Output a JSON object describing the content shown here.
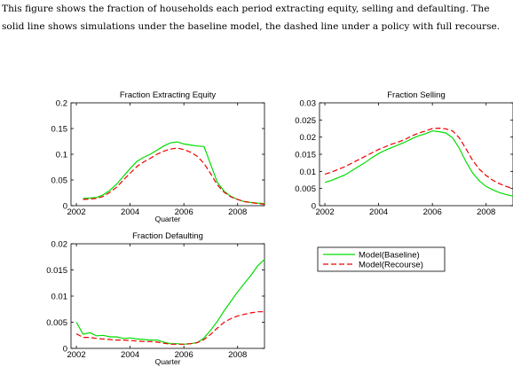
{
  "caption": "This figure shows the fraction of households each period extracting equity, selling and defaulting. The solid line shows simulations under the baseline model, the dashed line under a policy with full recourse.",
  "legend": {
    "placement": "center-right",
    "entries": [
      {
        "label": "Model(Baseline)",
        "color": "#00dd00",
        "style": "solid"
      },
      {
        "label": "Model(Recourse)",
        "color": "#ee0000",
        "style": "dashed"
      }
    ]
  },
  "chart_data": [
    {
      "type": "line",
      "title": "Fraction Extracting Equity",
      "xlabel": "Quarter",
      "ylabel": "",
      "xlim": [
        2001.8,
        2009.0
      ],
      "ylim": [
        0,
        0.2
      ],
      "xticks": [
        2002,
        2004,
        2006,
        2008
      ],
      "yticks": [
        0,
        0.05,
        0.1,
        0.15,
        0.2
      ],
      "ytick_labels": [
        "0",
        "0.05",
        "0.1",
        "0.15",
        "0.2"
      ],
      "grid": false,
      "series": [
        {
          "name": "Model(Baseline)",
          "color": "#00dd00",
          "style": "solid",
          "x": [
            2002.25,
            2002.5,
            2002.75,
            2003.0,
            2003.25,
            2003.5,
            2003.75,
            2004.0,
            2004.25,
            2004.5,
            2004.75,
            2005.0,
            2005.25,
            2005.5,
            2005.75,
            2006.0,
            2006.25,
            2006.5,
            2006.75,
            2007.0,
            2007.25,
            2007.5,
            2007.75,
            2008.0,
            2008.25,
            2008.5,
            2008.75,
            2009.0
          ],
          "y": [
            0.014,
            0.015,
            0.016,
            0.021,
            0.03,
            0.042,
            0.057,
            0.072,
            0.086,
            0.094,
            0.1,
            0.108,
            0.116,
            0.122,
            0.124,
            0.12,
            0.118,
            0.116,
            0.115,
            0.08,
            0.045,
            0.028,
            0.018,
            0.012,
            0.008,
            0.006,
            0.005,
            0.004
          ]
        },
        {
          "name": "Model(Recourse)",
          "color": "#ee0000",
          "style": "dashed",
          "x": [
            2002.25,
            2002.5,
            2002.75,
            2003.0,
            2003.25,
            2003.5,
            2003.75,
            2004.0,
            2004.25,
            2004.5,
            2004.75,
            2005.0,
            2005.25,
            2005.5,
            2005.75,
            2006.0,
            2006.25,
            2006.5,
            2006.75,
            2007.0,
            2007.25,
            2007.5,
            2007.75,
            2008.0,
            2008.25,
            2008.5,
            2008.75,
            2009.0
          ],
          "y": [
            0.012,
            0.013,
            0.014,
            0.018,
            0.026,
            0.036,
            0.05,
            0.063,
            0.076,
            0.085,
            0.092,
            0.1,
            0.106,
            0.11,
            0.112,
            0.109,
            0.104,
            0.096,
            0.082,
            0.062,
            0.04,
            0.026,
            0.017,
            0.012,
            0.008,
            0.006,
            0.004,
            0.003
          ]
        }
      ]
    },
    {
      "type": "line",
      "title": "Fraction Selling",
      "xlabel": "",
      "ylabel": "",
      "xlim": [
        2001.8,
        2009.0
      ],
      "ylim": [
        0,
        0.03
      ],
      "xticks": [
        2002,
        2004,
        2006,
        2008
      ],
      "yticks": [
        0,
        0.005,
        0.01,
        0.015,
        0.02,
        0.025,
        0.03
      ],
      "ytick_labels": [
        "0",
        "0.005",
        "0.01",
        "0.015",
        "0.02",
        "0.025",
        "0.03"
      ],
      "grid": false,
      "series": [
        {
          "name": "Model(Baseline)",
          "color": "#00dd00",
          "style": "solid",
          "x": [
            2002.0,
            2002.25,
            2002.5,
            2002.75,
            2003.0,
            2003.25,
            2003.5,
            2003.75,
            2004.0,
            2004.25,
            2004.5,
            2004.75,
            2005.0,
            2005.25,
            2005.5,
            2005.75,
            2006.0,
            2006.25,
            2006.5,
            2006.75,
            2007.0,
            2007.25,
            2007.5,
            2007.75,
            2008.0,
            2008.25,
            2008.5,
            2008.75,
            2009.0
          ],
          "y": [
            0.0068,
            0.0074,
            0.0082,
            0.009,
            0.0102,
            0.0114,
            0.0126,
            0.014,
            0.0152,
            0.0162,
            0.017,
            0.0178,
            0.0186,
            0.0196,
            0.0204,
            0.021,
            0.0218,
            0.0216,
            0.0212,
            0.0198,
            0.0168,
            0.0128,
            0.0095,
            0.0072,
            0.0056,
            0.0046,
            0.0038,
            0.0032,
            0.0028
          ]
        },
        {
          "name": "Model(Recourse)",
          "color": "#ee0000",
          "style": "dashed",
          "x": [
            2002.0,
            2002.25,
            2002.5,
            2002.75,
            2003.0,
            2003.25,
            2003.5,
            2003.75,
            2004.0,
            2004.25,
            2004.5,
            2004.75,
            2005.0,
            2005.25,
            2005.5,
            2005.75,
            2006.0,
            2006.25,
            2006.5,
            2006.75,
            2007.0,
            2007.25,
            2007.5,
            2007.75,
            2008.0,
            2008.25,
            2008.5,
            2008.75,
            2009.0
          ],
          "y": [
            0.0092,
            0.0098,
            0.0106,
            0.0114,
            0.0124,
            0.0134,
            0.0144,
            0.0154,
            0.0164,
            0.0172,
            0.018,
            0.0186,
            0.0194,
            0.0204,
            0.0212,
            0.0218,
            0.0225,
            0.0226,
            0.0224,
            0.0218,
            0.0198,
            0.0166,
            0.0132,
            0.0106,
            0.0088,
            0.0074,
            0.0064,
            0.0056,
            0.005
          ]
        }
      ]
    },
    {
      "type": "line",
      "title": "Fraction Defaulting",
      "xlabel": "Quarter",
      "ylabel": "",
      "xlim": [
        2001.8,
        2009.0
      ],
      "ylim": [
        0,
        0.02
      ],
      "xticks": [
        2002,
        2004,
        2006,
        2008
      ],
      "yticks": [
        0,
        0.005,
        0.01,
        0.015,
        0.02
      ],
      "ytick_labels": [
        "0",
        "0.005",
        "0.01",
        "0.015",
        "0.02"
      ],
      "grid": false,
      "series": [
        {
          "name": "Model(Baseline)",
          "color": "#00dd00",
          "style": "solid",
          "x": [
            2002.0,
            2002.25,
            2002.5,
            2002.75,
            2003.0,
            2003.25,
            2003.5,
            2003.75,
            2004.0,
            2004.25,
            2004.5,
            2004.75,
            2005.0,
            2005.25,
            2005.5,
            2005.75,
            2006.0,
            2006.25,
            2006.5,
            2006.75,
            2007.0,
            2007.25,
            2007.5,
            2007.75,
            2008.0,
            2008.25,
            2008.5,
            2008.75,
            2009.0
          ],
          "y": [
            0.005,
            0.0027,
            0.003,
            0.0024,
            0.0025,
            0.0022,
            0.0022,
            0.0019,
            0.002,
            0.0018,
            0.0017,
            0.0016,
            0.0016,
            0.0012,
            0.0009,
            0.0009,
            0.0008,
            0.0009,
            0.0011,
            0.002,
            0.0035,
            0.0052,
            0.0072,
            0.009,
            0.0108,
            0.0124,
            0.014,
            0.0158,
            0.017
          ]
        },
        {
          "name": "Model(Recourse)",
          "color": "#ee0000",
          "style": "dashed",
          "x": [
            2002.0,
            2002.25,
            2002.5,
            2002.75,
            2003.0,
            2003.25,
            2003.5,
            2003.75,
            2004.0,
            2004.25,
            2004.5,
            2004.75,
            2005.0,
            2005.25,
            2005.5,
            2005.75,
            2006.0,
            2006.25,
            2006.5,
            2006.75,
            2007.0,
            2007.25,
            2007.5,
            2007.75,
            2008.0,
            2008.25,
            2008.5,
            2008.75,
            2009.0
          ],
          "y": [
            0.0028,
            0.0021,
            0.0021,
            0.0019,
            0.0018,
            0.0017,
            0.0016,
            0.0016,
            0.0015,
            0.0014,
            0.0013,
            0.0013,
            0.0012,
            0.001,
            0.0008,
            0.0008,
            0.0008,
            0.0009,
            0.0011,
            0.0017,
            0.0027,
            0.0039,
            0.005,
            0.0057,
            0.0062,
            0.0065,
            0.0068,
            0.007,
            0.007
          ]
        }
      ]
    }
  ]
}
